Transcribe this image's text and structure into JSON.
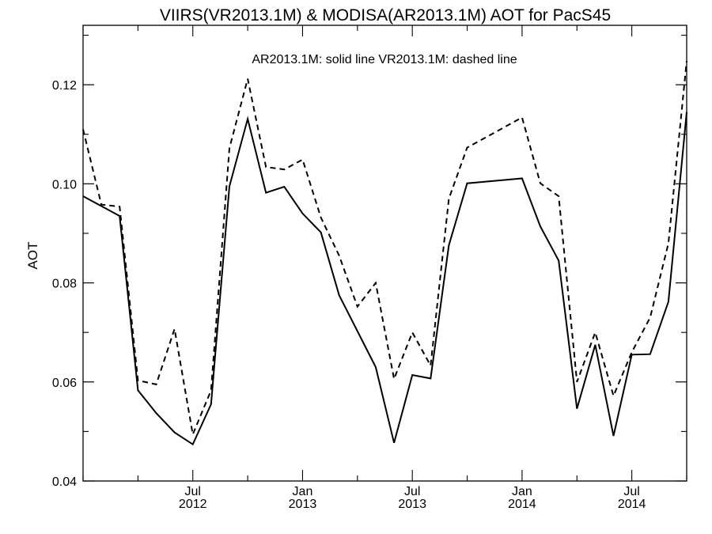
{
  "chart_data": {
    "type": "line",
    "title": "VIIRS(VR2013.1M) & MODISA(AR2013.1M)  AOT for PacS45",
    "annotation": "AR2013.1M: solid line   VR2013.1M: dashed line",
    "xlabel": "",
    "ylabel": "AOT",
    "xlim": [
      "2012-01",
      "2014-10"
    ],
    "ylim": [
      0.04,
      0.132
    ],
    "grid": false,
    "legend": "none",
    "x_ticks": [
      {
        "month": "2012-07",
        "line1": "Jul",
        "line2": "2012"
      },
      {
        "month": "2013-01",
        "line1": "Jan",
        "line2": "2013"
      },
      {
        "month": "2013-07",
        "line1": "Jul",
        "line2": "2013"
      },
      {
        "month": "2014-01",
        "line1": "Jan",
        "line2": "2014"
      },
      {
        "month": "2014-07",
        "line1": "Jul",
        "line2": "2014"
      }
    ],
    "y_ticks": [
      {
        "value": 0.04,
        "label": "0.04"
      },
      {
        "value": 0.06,
        "label": "0.06"
      },
      {
        "value": 0.08,
        "label": "0.08"
      },
      {
        "value": 0.1,
        "label": "0.10"
      },
      {
        "value": 0.12,
        "label": "0.12"
      }
    ],
    "series": [
      {
        "name": "AR2013.1M",
        "style": "solid",
        "color": "#000000",
        "points": [
          [
            "2012-01",
            0.0975
          ],
          [
            "2012-03",
            0.0935
          ],
          [
            "2012-04",
            0.0583
          ],
          [
            "2012-05",
            0.0537
          ],
          [
            "2012-06",
            0.0498
          ],
          [
            "2012-07",
            0.0474
          ],
          [
            "2012-08",
            0.0555
          ],
          [
            "2012-09",
            0.0995
          ],
          [
            "2012-10",
            0.1131
          ],
          [
            "2012-11",
            0.0982
          ],
          [
            "2012-12",
            0.0994
          ],
          [
            "2013-01",
            0.094
          ],
          [
            "2013-02",
            0.0902
          ],
          [
            "2013-03",
            0.0775
          ],
          [
            "2013-05",
            0.063
          ],
          [
            "2013-06",
            0.0477
          ],
          [
            "2013-07",
            0.0614
          ],
          [
            "2013-08",
            0.0607
          ],
          [
            "2013-09",
            0.0876
          ],
          [
            "2013-10",
            0.1001
          ],
          [
            "2014-01",
            0.1011
          ],
          [
            "2014-02",
            0.0914
          ],
          [
            "2014-03",
            0.0845
          ],
          [
            "2014-04",
            0.0546
          ],
          [
            "2014-05",
            0.0675
          ],
          [
            "2014-06",
            0.0491
          ],
          [
            "2014-07",
            0.0655
          ],
          [
            "2014-08",
            0.0656
          ],
          [
            "2014-09",
            0.0762
          ],
          [
            "2014-10",
            0.1145
          ]
        ]
      },
      {
        "name": "VR2013.1M",
        "style": "dashed",
        "color": "#000000",
        "points": [
          [
            "2012-01",
            0.111
          ],
          [
            "2012-02",
            0.0958
          ],
          [
            "2012-03",
            0.0954
          ],
          [
            "2012-04",
            0.0603
          ],
          [
            "2012-05",
            0.0595
          ],
          [
            "2012-06",
            0.0707
          ],
          [
            "2012-07",
            0.0494
          ],
          [
            "2012-08",
            0.0583
          ],
          [
            "2012-09",
            0.1072
          ],
          [
            "2012-10",
            0.1212
          ],
          [
            "2012-11",
            0.1034
          ],
          [
            "2012-12",
            0.1029
          ],
          [
            "2013-01",
            0.1049
          ],
          [
            "2013-02",
            0.0932
          ],
          [
            "2013-03",
            0.0855
          ],
          [
            "2013-04",
            0.0752
          ],
          [
            "2013-05",
            0.08
          ],
          [
            "2013-06",
            0.0606
          ],
          [
            "2013-07",
            0.07
          ],
          [
            "2013-08",
            0.0633
          ],
          [
            "2013-09",
            0.097
          ],
          [
            "2013-10",
            0.1073
          ],
          [
            "2014-01",
            0.1134
          ],
          [
            "2014-02",
            0.1001
          ],
          [
            "2014-03",
            0.0975
          ],
          [
            "2014-04",
            0.06
          ],
          [
            "2014-05",
            0.07
          ],
          [
            "2014-06",
            0.0572
          ],
          [
            "2014-07",
            0.066
          ],
          [
            "2014-08",
            0.073
          ],
          [
            "2014-09",
            0.088
          ],
          [
            "2014-10",
            0.1248
          ]
        ]
      }
    ]
  }
}
